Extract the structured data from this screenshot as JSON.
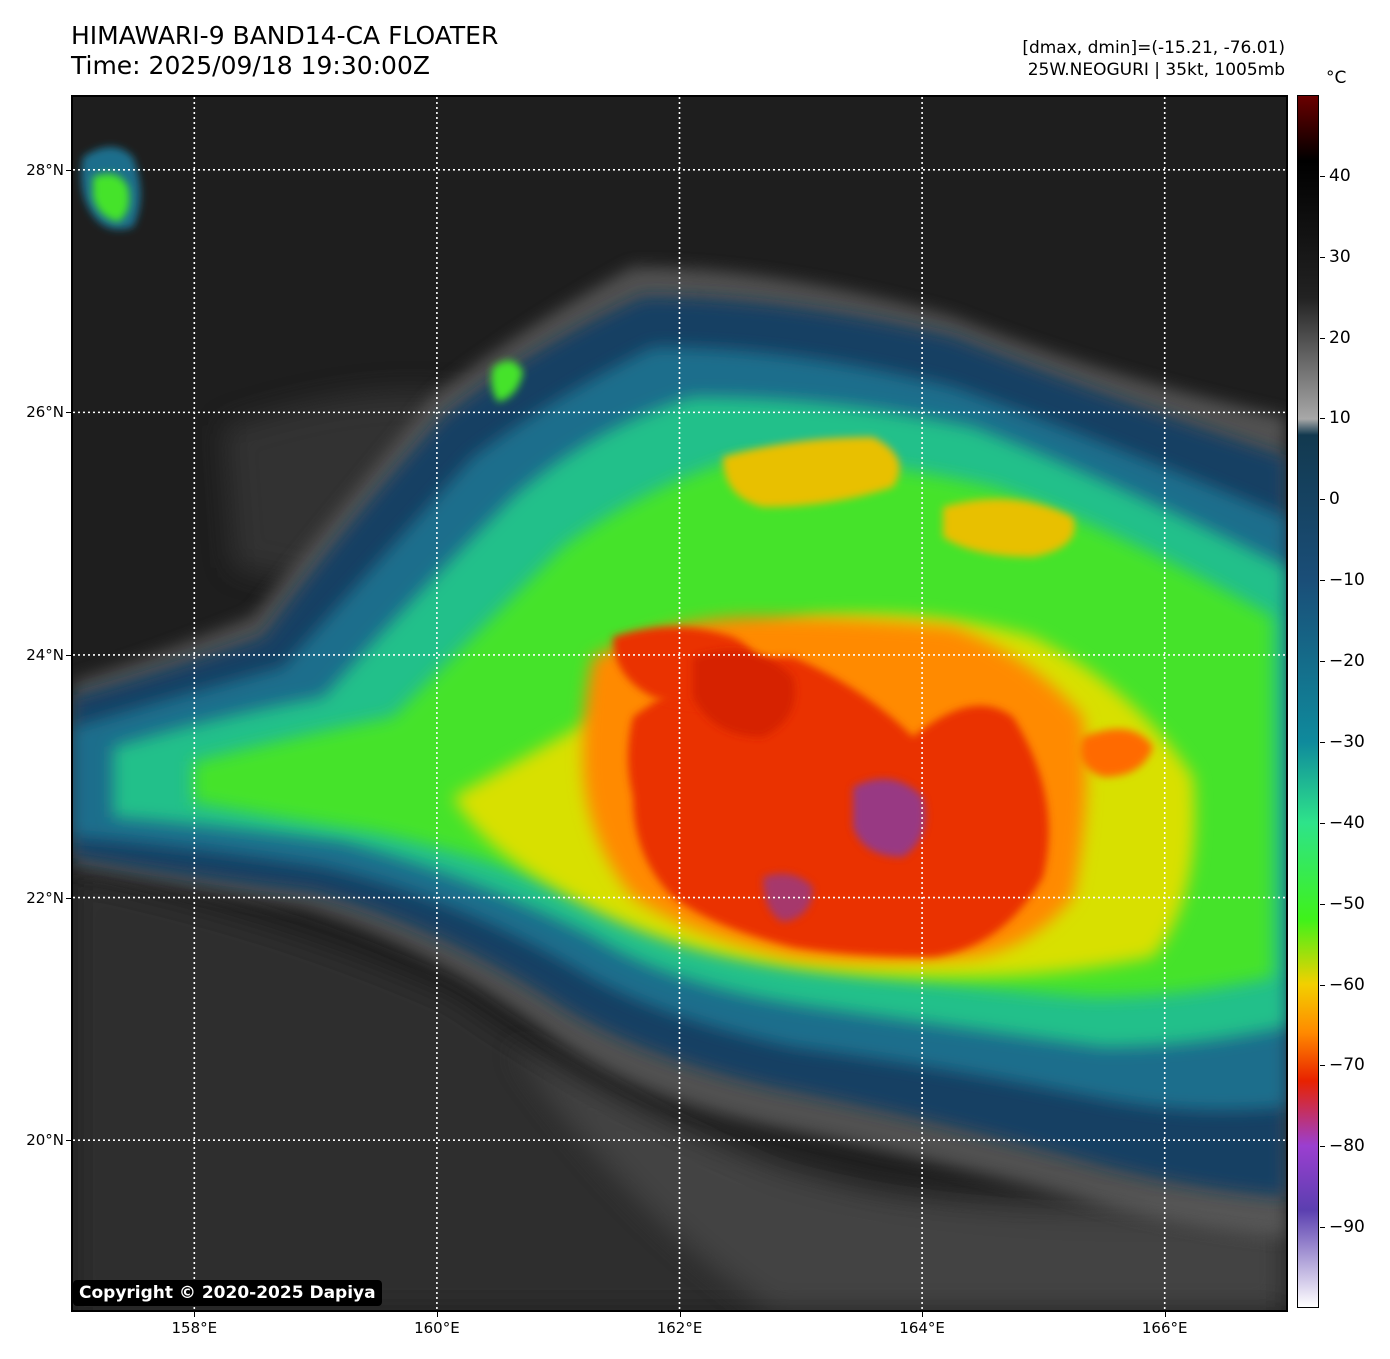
{
  "header": {
    "title": "HIMAWARI-9 BAND14-CA FLOATER",
    "time": "Time: 2025/09/18 19:30:00Z",
    "dminmax": "[dmax, dmin]=(-15.21, -76.01)",
    "storm": "25W.NEOGURI | 35kt, 1005mb"
  },
  "copyright": "Copyright © 2020-2025 Dapiya",
  "map": {
    "lat_labels": [
      "28°N",
      "26°N",
      "24°N",
      "22°N",
      "20°N"
    ],
    "lon_labels": [
      "158°E",
      "160°E",
      "162°E",
      "164°E",
      "166°E"
    ],
    "lat_range": [
      18.6,
      28.6
    ],
    "lon_range": [
      157.0,
      167.0
    ]
  },
  "colorbar": {
    "unit": "°C",
    "range": [
      -100,
      50
    ],
    "ticks": [
      "40",
      "30",
      "20",
      "10",
      "0",
      "−10",
      "−20",
      "−30",
      "−40",
      "−50",
      "−60",
      "−70",
      "−80",
      "−90"
    ],
    "tick_values": [
      40,
      30,
      20,
      10,
      0,
      -10,
      -20,
      -30,
      -40,
      -50,
      -60,
      -70,
      -80,
      -90
    ],
    "stops": [
      {
        "t": 50,
        "color": "#6a0000"
      },
      {
        "t": 42,
        "color": "#000000"
      },
      {
        "t": 25,
        "color": "#222222"
      },
      {
        "t": 10,
        "color": "#a8a8a8"
      },
      {
        "t": 8,
        "color": "#12394f"
      },
      {
        "t": -10,
        "color": "#1a4e78"
      },
      {
        "t": -30,
        "color": "#0f8a9c"
      },
      {
        "t": -40,
        "color": "#2ee38a"
      },
      {
        "t": -52,
        "color": "#3ff21a"
      },
      {
        "t": -60,
        "color": "#f2d000"
      },
      {
        "t": -66,
        "color": "#ff8a00"
      },
      {
        "t": -72,
        "color": "#e82200"
      },
      {
        "t": -80,
        "color": "#9b3fd0"
      },
      {
        "t": -88,
        "color": "#5b3fb0"
      },
      {
        "t": -100,
        "color": "#ffffff"
      }
    ]
  }
}
